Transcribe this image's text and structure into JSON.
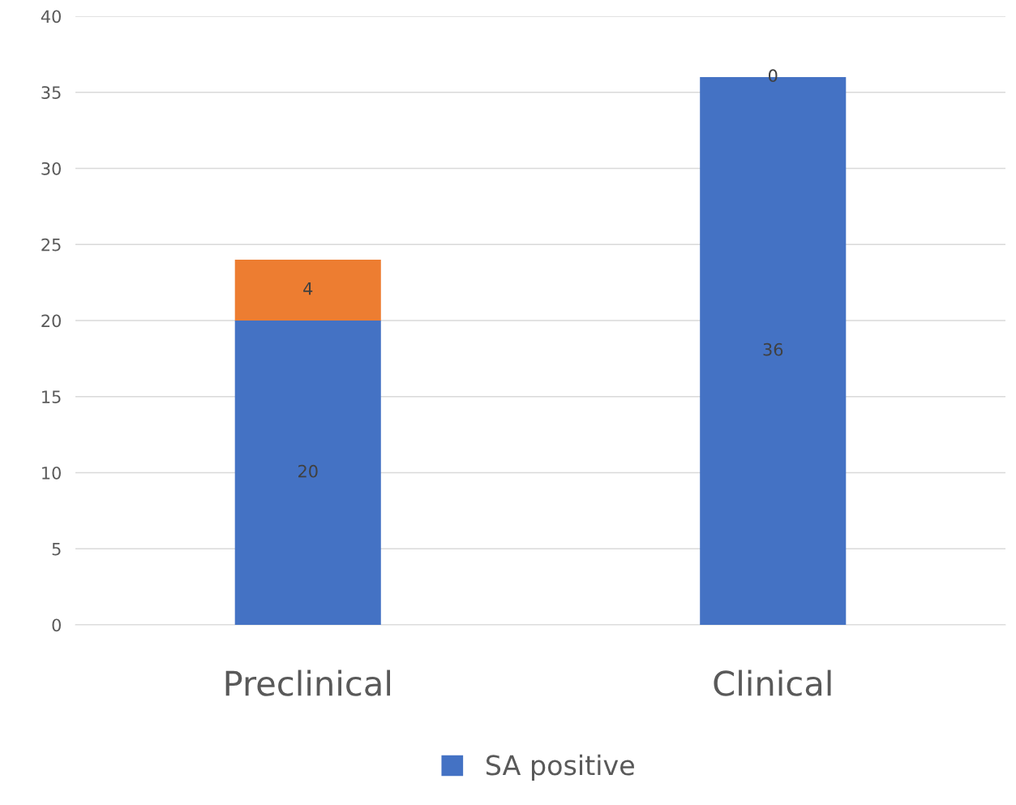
{
  "chart_data": {
    "type": "bar",
    "stacked": true,
    "categories": [
      "Preclinical",
      "Clinical"
    ],
    "series": [
      {
        "name": "SA positive",
        "color": "#4472c4",
        "values": [
          20,
          36
        ]
      },
      {
        "color": "#ed7d31",
        "values": [
          4,
          0
        ]
      }
    ],
    "ylim": [
      0,
      40
    ],
    "yticks": [
      0,
      5,
      10,
      15,
      20,
      25,
      30,
      35,
      40
    ],
    "grid": "y",
    "legend": "bottom",
    "data_labels": true
  }
}
